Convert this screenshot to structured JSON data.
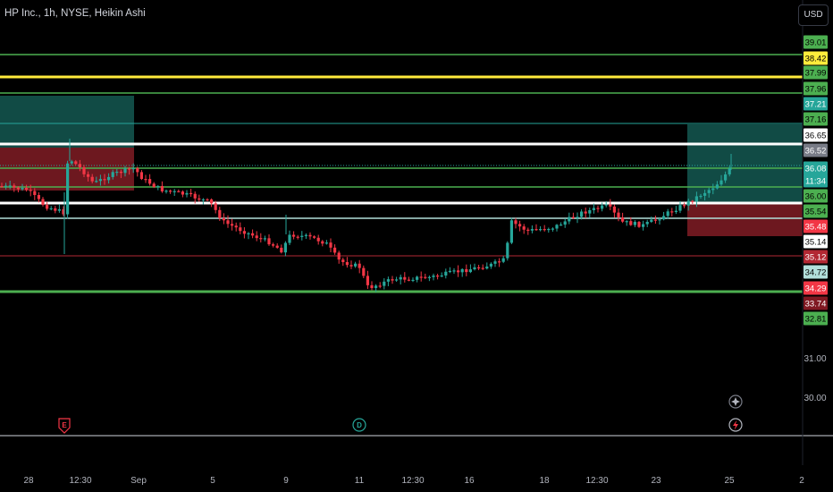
{
  "header": {
    "symbol_title": "HP Inc., 1h, NYSE, Heikin Ashi",
    "currency": "USD"
  },
  "chart_data": {
    "type": "candlestick",
    "title": "HP Inc., 1h, NYSE, Heikin Ashi",
    "y_axis_ticks": [
      "31.00",
      "30.00"
    ],
    "x_axis_ticks": [
      "28",
      "12:30",
      "Sep",
      "5",
      "9",
      "11",
      "12:30",
      "16",
      "18",
      "12:30",
      "23",
      "25",
      "2"
    ],
    "price_labels": [
      {
        "value": "39.01",
        "bg": "#4caf50",
        "fg": "#000000"
      },
      {
        "value": "38.42",
        "bg": "#ffeb3b",
        "fg": "#000000"
      },
      {
        "value": "37.99",
        "bg": "#4caf50",
        "fg": "#000000"
      },
      {
        "value": "37.96",
        "bg": "#4caf50",
        "fg": "#000000"
      },
      {
        "value": "37.21",
        "bg": "#26a69a",
        "fg": "#ffffff"
      },
      {
        "value": "37.16",
        "bg": "#4caf50",
        "fg": "#000000"
      },
      {
        "value": "36.65",
        "bg": "#ffffff",
        "fg": "#000000"
      },
      {
        "value": "36.52",
        "bg": "#787b86",
        "fg": "#ffffff"
      },
      {
        "value": "36.08",
        "bg": "#26a69a",
        "fg": "#ffffff"
      },
      {
        "value": "11:34",
        "bg": "#26a69a",
        "fg": "#ffffff"
      },
      {
        "value": "36.00",
        "bg": "#4caf50",
        "fg": "#000000"
      },
      {
        "value": "35.54",
        "bg": "#4caf50",
        "fg": "#000000"
      },
      {
        "value": "35.48",
        "bg": "#f23645",
        "fg": "#ffffff"
      },
      {
        "value": "35.14",
        "bg": "#ffffff",
        "fg": "#000000"
      },
      {
        "value": "35.12",
        "bg": "#b22833",
        "fg": "#ffffff"
      },
      {
        "value": "34.72",
        "bg": "#b2dfdb",
        "fg": "#000000"
      },
      {
        "value": "34.29",
        "bg": "#f23645",
        "fg": "#ffffff"
      },
      {
        "value": "33.74",
        "bg": "#801922",
        "fg": "#ffffff"
      },
      {
        "value": "32.81",
        "bg": "#4caf50",
        "fg": "#000000"
      }
    ],
    "horizontal_lines": [
      {
        "color": "#4caf50"
      },
      {
        "color": "#ffeb3b"
      },
      {
        "color": "#4caf50"
      },
      {
        "color": "#26a69a"
      },
      {
        "color": "#ffffff"
      },
      {
        "color": "#4caf50"
      },
      {
        "color": "#4caf50"
      },
      {
        "color": "#ffffff"
      },
      {
        "color": "#b2dfdb"
      },
      {
        "color": "#b22833"
      },
      {
        "color": "#4caf50"
      }
    ],
    "events": [
      {
        "letter": "E",
        "color": "#f23645"
      },
      {
        "letter": "D",
        "color": "#26a69a"
      }
    ],
    "colors": {
      "up": "#26a69a",
      "down": "#f23645",
      "background": "#000000"
    }
  }
}
